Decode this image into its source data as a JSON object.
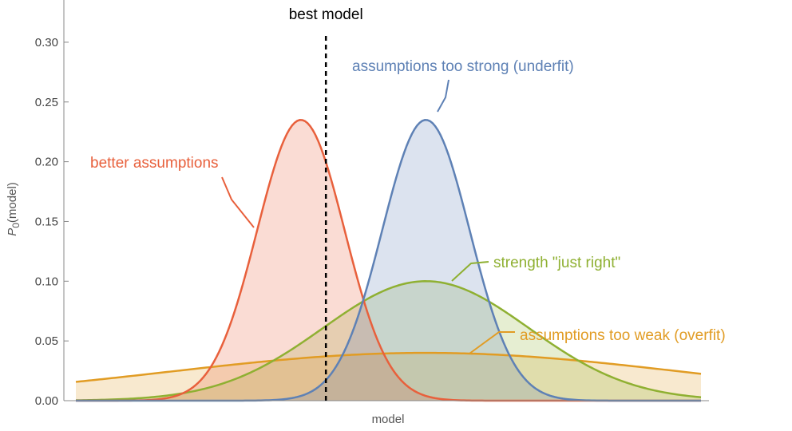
{
  "chart_data": {
    "type": "area",
    "title": "",
    "xlabel": "model",
    "ylabel_main": "P",
    "ylabel_sub": "0",
    "ylabel_rest": "(model)",
    "xlim": [
      0,
      10
    ],
    "ylim": [
      0,
      0.33
    ],
    "yticks": [
      {
        "value": 0.0,
        "label": "0.00"
      },
      {
        "value": 0.05,
        "label": "0.05"
      },
      {
        "value": 0.1,
        "label": "0.10"
      },
      {
        "value": 0.15,
        "label": "0.15"
      },
      {
        "value": 0.2,
        "label": "0.20"
      },
      {
        "value": 0.25,
        "label": "0.25"
      },
      {
        "value": 0.3,
        "label": "0.30"
      }
    ],
    "grid": false,
    "best_model": {
      "x": 4.0,
      "label": "best model"
    },
    "series": [
      {
        "name": "better assumptions",
        "distribution": "normal",
        "mean": 3.6,
        "peak": 0.235,
        "sd": 0.7,
        "color": "#E8603C"
      },
      {
        "name": "assumptions too strong (underfit)",
        "distribution": "normal",
        "mean": 5.6,
        "peak": 0.235,
        "sd": 0.7,
        "color": "#5E81B5"
      },
      {
        "name": "strength \"just right\"",
        "distribution": "normal",
        "mean": 5.6,
        "peak": 0.1,
        "sd": 1.65,
        "color": "#8FB032"
      },
      {
        "name": "assumptions too weak (overfit)",
        "distribution": "normal",
        "mean": 5.6,
        "peak": 0.04,
        "sd": 4.1,
        "color": "#E19C24"
      }
    ]
  }
}
